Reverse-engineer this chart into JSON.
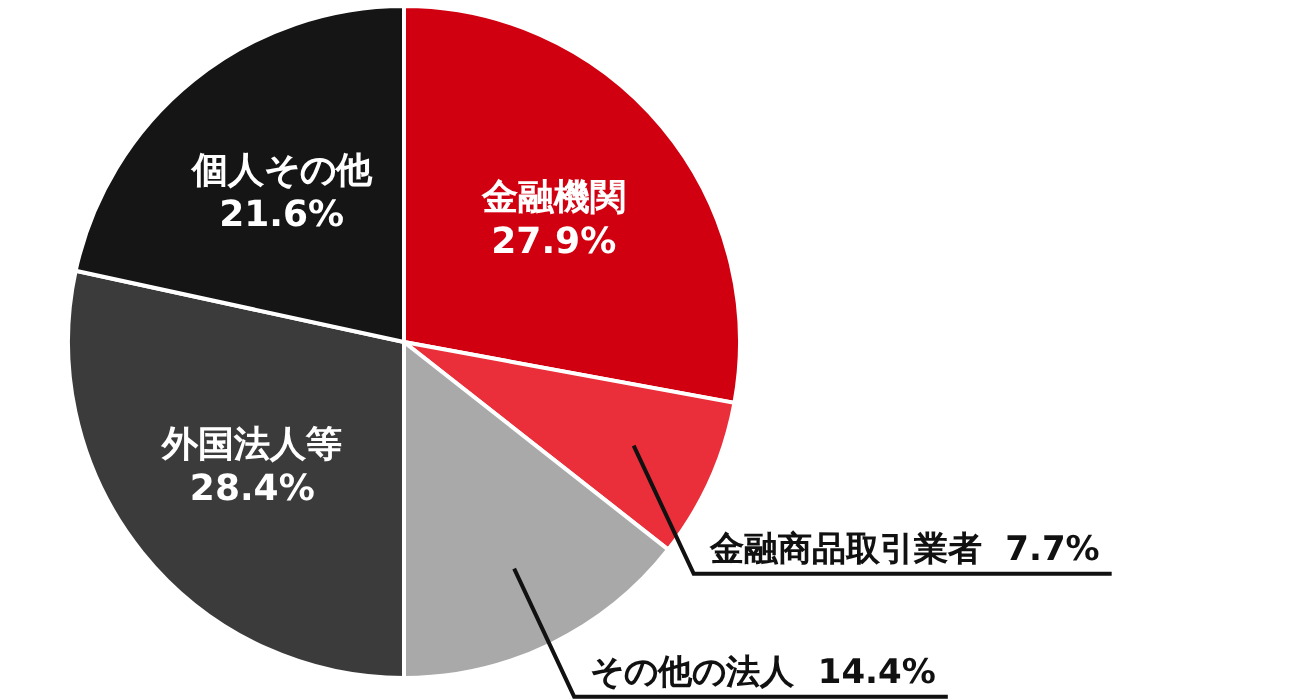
{
  "chart_data": {
    "type": "pie",
    "categories": [
      "金融機関",
      "金融商品取引業者",
      "その他の法人",
      "外国法人等",
      "個人その他"
    ],
    "values": [
      27.9,
      7.7,
      14.4,
      28.4,
      21.6
    ],
    "value_labels": [
      "27.9%",
      "7.7%",
      "14.4%",
      "28.4%",
      "21.6%"
    ],
    "colors": [
      "#d10010",
      "#ea2e3a",
      "#a9a9a9",
      "#3b3b3b",
      "#151515"
    ]
  }
}
